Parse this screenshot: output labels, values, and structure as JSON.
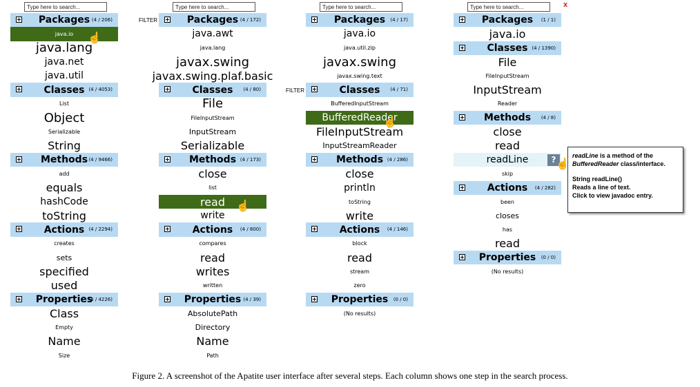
{
  "columns": [
    {
      "search_placeholder": "Type here to search...",
      "rows": [
        {
          "type": "header",
          "name": "Packages",
          "count": "(4 / 206)"
        },
        {
          "type": "item",
          "text": "java.io",
          "size": 1,
          "state": "selected",
          "cursor": true
        },
        {
          "type": "item",
          "text": "java.lang",
          "size": 5
        },
        {
          "type": "item",
          "text": "java.net",
          "size": 3
        },
        {
          "type": "item",
          "text": "java.util",
          "size": 3
        },
        {
          "type": "header",
          "name": "Classes",
          "count": "(4 / 4053)"
        },
        {
          "type": "item",
          "text": "List",
          "size": 1
        },
        {
          "type": "item",
          "text": "Object",
          "size": 5
        },
        {
          "type": "item",
          "text": "Serializable",
          "size": 1
        },
        {
          "type": "item",
          "text": "String",
          "size": 4
        },
        {
          "type": "header",
          "name": "Methods",
          "count": "(4 / 9466)"
        },
        {
          "type": "item",
          "text": "add",
          "size": 1
        },
        {
          "type": "item",
          "text": "equals",
          "size": 4
        },
        {
          "type": "item",
          "text": "hashCode",
          "size": 3
        },
        {
          "type": "item",
          "text": "toString",
          "size": 4
        },
        {
          "type": "header",
          "name": "Actions",
          "count": "(4 / 2294)"
        },
        {
          "type": "item",
          "text": "creates",
          "size": 1
        },
        {
          "type": "item",
          "text": "sets",
          "size": 2
        },
        {
          "type": "item",
          "text": "specified",
          "size": 4
        },
        {
          "type": "item",
          "text": "used",
          "size": 4
        },
        {
          "type": "header",
          "name": "Properties",
          "count": "(4 / 4226)"
        },
        {
          "type": "item",
          "text": "Class",
          "size": 4
        },
        {
          "type": "item",
          "text": "Empty",
          "size": 1
        },
        {
          "type": "item",
          "text": "Name",
          "size": 4
        },
        {
          "type": "item",
          "text": "Size",
          "size": 1
        }
      ]
    },
    {
      "search_placeholder": "Type here to search...",
      "filter_label": "FILTER",
      "filter_row": 0,
      "rows": [
        {
          "type": "header",
          "name": "Packages",
          "count": "(4 / 172)"
        },
        {
          "type": "item",
          "text": "java.awt",
          "size": 3
        },
        {
          "type": "item",
          "text": "java.lang",
          "size": 1
        },
        {
          "type": "item",
          "text": "javax.swing",
          "size": 5
        },
        {
          "type": "item",
          "text": "javax.swing.plaf.basic",
          "size": 4
        },
        {
          "type": "header",
          "name": "Classes",
          "count": "(4 / 80)"
        },
        {
          "type": "item",
          "text": "File",
          "size": 5
        },
        {
          "type": "item",
          "text": "FileInputStream",
          "size": 1
        },
        {
          "type": "item",
          "text": "InputStream",
          "size": 2
        },
        {
          "type": "item",
          "text": "Serializable",
          "size": 4
        },
        {
          "type": "header",
          "name": "Methods",
          "count": "(4 / 173)"
        },
        {
          "type": "item",
          "text": "close",
          "size": 4
        },
        {
          "type": "item",
          "text": "list",
          "size": 1
        },
        {
          "type": "item",
          "text": "read",
          "size": 4,
          "state": "selected",
          "cursor": true
        },
        {
          "type": "item",
          "text": "write",
          "size": 3
        },
        {
          "type": "header",
          "name": "Actions",
          "count": "(4 / 800)"
        },
        {
          "type": "item",
          "text": "compares",
          "size": 1
        },
        {
          "type": "item",
          "text": "read",
          "size": 4
        },
        {
          "type": "item",
          "text": "writes",
          "size": 4
        },
        {
          "type": "item",
          "text": "written",
          "size": 1
        },
        {
          "type": "header",
          "name": "Properties",
          "count": "(4 / 39)"
        },
        {
          "type": "item",
          "text": "AbsolutePath",
          "size": 2
        },
        {
          "type": "item",
          "text": "Directory",
          "size": 2
        },
        {
          "type": "item",
          "text": "Name",
          "size": 4
        },
        {
          "type": "item",
          "text": "Path",
          "size": 1
        }
      ]
    },
    {
      "search_placeholder": "Type here to search...",
      "filter_label": "FILTER",
      "filter_row": 5,
      "rows": [
        {
          "type": "header",
          "name": "Packages",
          "count": "(4 / 17)"
        },
        {
          "type": "item",
          "text": "java.io",
          "size": 3
        },
        {
          "type": "item",
          "text": "java.util.zip",
          "size": 1
        },
        {
          "type": "item",
          "text": "javax.swing",
          "size": 5
        },
        {
          "type": "item",
          "text": "javax.swing.text",
          "size": 1
        },
        {
          "type": "header",
          "name": "Classes",
          "count": "(4 / 71)"
        },
        {
          "type": "item",
          "text": "BufferedInputStream",
          "size": 1
        },
        {
          "type": "item",
          "text": "BufferedReader",
          "size": 3,
          "state": "selected",
          "cursor": true
        },
        {
          "type": "item",
          "text": "FileInputStream",
          "size": 4
        },
        {
          "type": "item",
          "text": "InputStreamReader",
          "size": 2
        },
        {
          "type": "header",
          "name": "Methods",
          "count": "(4 / 286)"
        },
        {
          "type": "item",
          "text": "close",
          "size": 4
        },
        {
          "type": "item",
          "text": "println",
          "size": 3
        },
        {
          "type": "item",
          "text": "toString",
          "size": 1
        },
        {
          "type": "item",
          "text": "write",
          "size": 4
        },
        {
          "type": "header",
          "name": "Actions",
          "count": "(4 / 146)"
        },
        {
          "type": "item",
          "text": "block",
          "size": 1
        },
        {
          "type": "item",
          "text": "read",
          "size": 4
        },
        {
          "type": "item",
          "text": "stream",
          "size": 1
        },
        {
          "type": "item",
          "text": "zero",
          "size": 1
        },
        {
          "type": "header",
          "name": "Properties",
          "count": "(0 / 0)"
        },
        {
          "type": "item",
          "text": "(No results)",
          "size": 1
        }
      ]
    },
    {
      "search_placeholder": "Type here to search...",
      "close_mark": "x",
      "rows": [
        {
          "type": "header",
          "name": "Packages",
          "count": "(1 / 1)"
        },
        {
          "type": "item",
          "text": "java.io",
          "size": 4
        },
        {
          "type": "header",
          "name": "Classes",
          "count": "(4 / 1390)"
        },
        {
          "type": "item",
          "text": "File",
          "size": 4
        },
        {
          "type": "item",
          "text": "FileInputStream",
          "size": 1
        },
        {
          "type": "item",
          "text": "InputStream",
          "size": 4
        },
        {
          "type": "item",
          "text": "Reader",
          "size": 1
        },
        {
          "type": "header",
          "name": "Methods",
          "count": "(4 / 8)"
        },
        {
          "type": "item",
          "text": "close",
          "size": 4
        },
        {
          "type": "item",
          "text": "read",
          "size": 4
        },
        {
          "type": "item",
          "text": "readLine",
          "size": 3,
          "state": "hover",
          "help": "?",
          "cursor": true
        },
        {
          "type": "item",
          "text": "skip",
          "size": 1
        },
        {
          "type": "header",
          "name": "Actions",
          "count": "(4 / 282)"
        },
        {
          "type": "item",
          "text": "been",
          "size": 1
        },
        {
          "type": "item",
          "text": "closes",
          "size": 2
        },
        {
          "type": "item",
          "text": "has",
          "size": 1
        },
        {
          "type": "item",
          "text": "read",
          "size": 4
        },
        {
          "type": "header",
          "name": "Properties",
          "count": "(0 / 0)"
        },
        {
          "type": "item",
          "text": "(No results)",
          "size": 1
        }
      ]
    }
  ],
  "tooltip": {
    "line1_em": "readLine",
    "line1_rest": " is a method of the",
    "line2_em": "BufferedReader",
    "line2_rest": " class/interface.",
    "line3": "String readLine()",
    "line4": "Reads a line of text.",
    "line5": "Click to view javadoc entry."
  },
  "caption": "Figure 2. A screenshot of the Apatite user interface after several steps. Each column shows one step in the search process.",
  "colors": {
    "header_bg": "#b8d9f2",
    "selected_bg": "#3f6a17",
    "hover_bg": "#e3f3f8",
    "help_btn": "#6a8196",
    "close_mark": "#d21a1a"
  }
}
